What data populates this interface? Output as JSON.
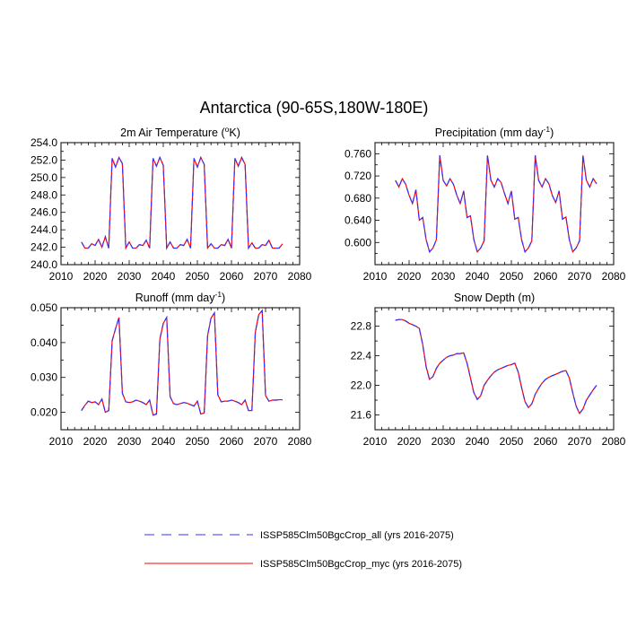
{
  "title": "Antarctica (90-65S,180W-180E)",
  "legend": [
    {
      "label": "ISSP585Clm50BgcCrop_all (yrs 2016-2075)",
      "color": "#3333ff",
      "dash": true
    },
    {
      "label": "ISSP585Clm50BgcCrop_myc (yrs 2016-2075)",
      "color": "#ff0000",
      "dash": false
    }
  ],
  "chart_data": [
    {
      "type": "line",
      "title": "2m Air Temperature (",
      "title_sup": "o",
      "title_tail": "K)",
      "xlim": [
        2010,
        2080
      ],
      "ylim": [
        240,
        254
      ],
      "xticks": [
        2010,
        2020,
        2030,
        2040,
        2050,
        2060,
        2070,
        2080
      ],
      "yticks": [
        "240.0",
        "242.0",
        "244.0",
        "246.0",
        "248.0",
        "250.0",
        "252.0",
        "254.0"
      ],
      "x": [
        2016,
        2017,
        2018,
        2019,
        2020,
        2021,
        2022,
        2023,
        2024,
        2025,
        2026,
        2027,
        2028,
        2029,
        2030,
        2031,
        2032,
        2033,
        2034,
        2035,
        2036,
        2037,
        2038,
        2039,
        2040,
        2041,
        2042,
        2043,
        2044,
        2045,
        2046,
        2047,
        2048,
        2049,
        2050,
        2051,
        2052,
        2053,
        2054,
        2055,
        2056,
        2057,
        2058,
        2059,
        2060,
        2061,
        2062,
        2063,
        2064,
        2065,
        2066,
        2067,
        2068,
        2069,
        2070,
        2071,
        2072,
        2073,
        2074,
        2075
      ],
      "series": [
        {
          "values": [
            242.6,
            241.9,
            241.9,
            242.4,
            242.2,
            242.9,
            242.0,
            243.2,
            241.9,
            252.2,
            251.2,
            252.3,
            251.6,
            241.9,
            242.6,
            241.9,
            241.9,
            242.3,
            242.2,
            242.8,
            241.9,
            252.2,
            251.3,
            252.3,
            251.4,
            241.9,
            242.6,
            241.9,
            241.9,
            242.3,
            242.2,
            242.9,
            241.9,
            252.2,
            251.2,
            252.3,
            251.5,
            241.9,
            242.4,
            241.9,
            241.9,
            242.3,
            242.2,
            242.9,
            241.9,
            252.2,
            251.3,
            252.3,
            251.5,
            241.9,
            242.5,
            241.9,
            241.9,
            242.3,
            242.2,
            242.8,
            241.9,
            241.9,
            241.9,
            242.4
          ]
        }
      ]
    },
    {
      "type": "line",
      "title": "Precipitation (mm day",
      "title_sup": "-1",
      "title_tail": ")",
      "xlim": [
        2010,
        2080
      ],
      "ylim": [
        0.56,
        0.78
      ],
      "xticks": [
        2010,
        2020,
        2030,
        2040,
        2050,
        2060,
        2070,
        2080
      ],
      "yticks": [
        "0.600",
        "0.640",
        "0.680",
        "0.720",
        "0.760"
      ],
      "ytick_values": [
        0.6,
        0.64,
        0.68,
        0.72,
        0.76
      ],
      "x": [
        2016,
        2017,
        2018,
        2019,
        2020,
        2021,
        2022,
        2023,
        2024,
        2025,
        2026,
        2027,
        2028,
        2029,
        2030,
        2031,
        2032,
        2033,
        2034,
        2035,
        2036,
        2037,
        2038,
        2039,
        2040,
        2041,
        2042,
        2043,
        2044,
        2045,
        2046,
        2047,
        2048,
        2049,
        2050,
        2051,
        2052,
        2053,
        2054,
        2055,
        2056,
        2057,
        2058,
        2059,
        2060,
        2061,
        2062,
        2063,
        2064,
        2065,
        2066,
        2067,
        2068,
        2069,
        2070,
        2071,
        2072,
        2073,
        2074,
        2075
      ],
      "series": [
        {
          "values": [
            0.712,
            0.7,
            0.715,
            0.705,
            0.685,
            0.67,
            0.695,
            0.64,
            0.645,
            0.605,
            0.583,
            0.59,
            0.605,
            0.757,
            0.712,
            0.702,
            0.715,
            0.705,
            0.685,
            0.67,
            0.693,
            0.645,
            0.648,
            0.605,
            0.583,
            0.59,
            0.603,
            0.757,
            0.712,
            0.7,
            0.715,
            0.708,
            0.688,
            0.67,
            0.693,
            0.642,
            0.645,
            0.605,
            0.583,
            0.59,
            0.603,
            0.757,
            0.712,
            0.7,
            0.715,
            0.706,
            0.685,
            0.672,
            0.693,
            0.642,
            0.646,
            0.605,
            0.583,
            0.59,
            0.603,
            0.757,
            0.712,
            0.7,
            0.715,
            0.706
          ]
        }
      ]
    },
    {
      "type": "line",
      "title": "Runoff (mm day",
      "title_sup": "-1",
      "title_tail": ")",
      "xlim": [
        2010,
        2080
      ],
      "ylim": [
        0.015,
        0.05
      ],
      "xticks": [
        2010,
        2020,
        2030,
        2040,
        2050,
        2060,
        2070,
        2080
      ],
      "yticks": [
        "0.020",
        "0.030",
        "0.040",
        "0.050"
      ],
      "ytick_values": [
        0.02,
        0.03,
        0.04,
        0.05
      ],
      "x": [
        2016,
        2017,
        2018,
        2019,
        2020,
        2021,
        2022,
        2023,
        2024,
        2025,
        2026,
        2027,
        2028,
        2029,
        2030,
        2031,
        2032,
        2033,
        2034,
        2035,
        2036,
        2037,
        2038,
        2039,
        2040,
        2041,
        2042,
        2043,
        2044,
        2045,
        2046,
        2047,
        2048,
        2049,
        2050,
        2051,
        2052,
        2053,
        2054,
        2055,
        2056,
        2057,
        2058,
        2059,
        2060,
        2061,
        2062,
        2063,
        2064,
        2065,
        2066,
        2067,
        2068,
        2069,
        2070,
        2071,
        2072,
        2073,
        2074,
        2075
      ],
      "series": [
        {
          "values": [
            0.0205,
            0.022,
            0.0232,
            0.0228,
            0.023,
            0.0222,
            0.0238,
            0.02,
            0.0205,
            0.0405,
            0.044,
            0.0472,
            0.0255,
            0.023,
            0.0228,
            0.023,
            0.0235,
            0.0232,
            0.0228,
            0.0222,
            0.0235,
            0.0192,
            0.0195,
            0.041,
            0.0455,
            0.0472,
            0.0245,
            0.0225,
            0.0222,
            0.0225,
            0.0228,
            0.0226,
            0.0222,
            0.0218,
            0.0232,
            0.0195,
            0.0198,
            0.042,
            0.047,
            0.0485,
            0.025,
            0.023,
            0.0232,
            0.0232,
            0.0235,
            0.0232,
            0.0228,
            0.0222,
            0.0235,
            0.0205,
            0.0205,
            0.043,
            0.048,
            0.0492,
            0.0248,
            0.0232,
            0.0235,
            0.0235,
            0.0236,
            0.0236
          ]
        }
      ]
    },
    {
      "type": "line",
      "title": "Snow Depth (m)",
      "title_sup": "",
      "title_tail": "",
      "xlim": [
        2010,
        2080
      ],
      "ylim": [
        21.4,
        23.05
      ],
      "xticks": [
        2010,
        2020,
        2030,
        2040,
        2050,
        2060,
        2070,
        2080
      ],
      "yticks": [
        "21.6",
        "22.0",
        "22.4",
        "22.8"
      ],
      "ytick_values": [
        21.6,
        22.0,
        22.4,
        22.8
      ],
      "x": [
        2016,
        2017,
        2018,
        2019,
        2020,
        2021,
        2022,
        2023,
        2024,
        2025,
        2026,
        2027,
        2028,
        2029,
        2030,
        2031,
        2032,
        2033,
        2034,
        2035,
        2036,
        2037,
        2038,
        2039,
        2040,
        2041,
        2042,
        2043,
        2044,
        2045,
        2046,
        2047,
        2048,
        2049,
        2050,
        2051,
        2052,
        2053,
        2054,
        2055,
        2056,
        2057,
        2058,
        2059,
        2060,
        2061,
        2062,
        2063,
        2064,
        2065,
        2066,
        2067,
        2068,
        2069,
        2070,
        2071,
        2072,
        2073,
        2074,
        2075
      ],
      "series": [
        {
          "values": [
            22.88,
            22.89,
            22.89,
            22.87,
            22.84,
            22.82,
            22.8,
            22.77,
            22.55,
            22.25,
            22.08,
            22.12,
            22.23,
            22.3,
            22.34,
            22.38,
            22.4,
            22.41,
            22.43,
            22.43,
            22.44,
            22.3,
            22.1,
            21.9,
            21.81,
            21.86,
            22.0,
            22.07,
            22.13,
            22.18,
            22.21,
            22.23,
            22.25,
            22.27,
            22.28,
            22.3,
            22.18,
            21.97,
            21.78,
            21.7,
            21.75,
            21.88,
            21.96,
            22.03,
            22.08,
            22.11,
            22.13,
            22.15,
            22.17,
            22.19,
            22.2,
            22.1,
            21.9,
            21.72,
            21.62,
            21.68,
            21.8,
            21.87,
            21.94,
            22.0
          ]
        }
      ]
    }
  ]
}
